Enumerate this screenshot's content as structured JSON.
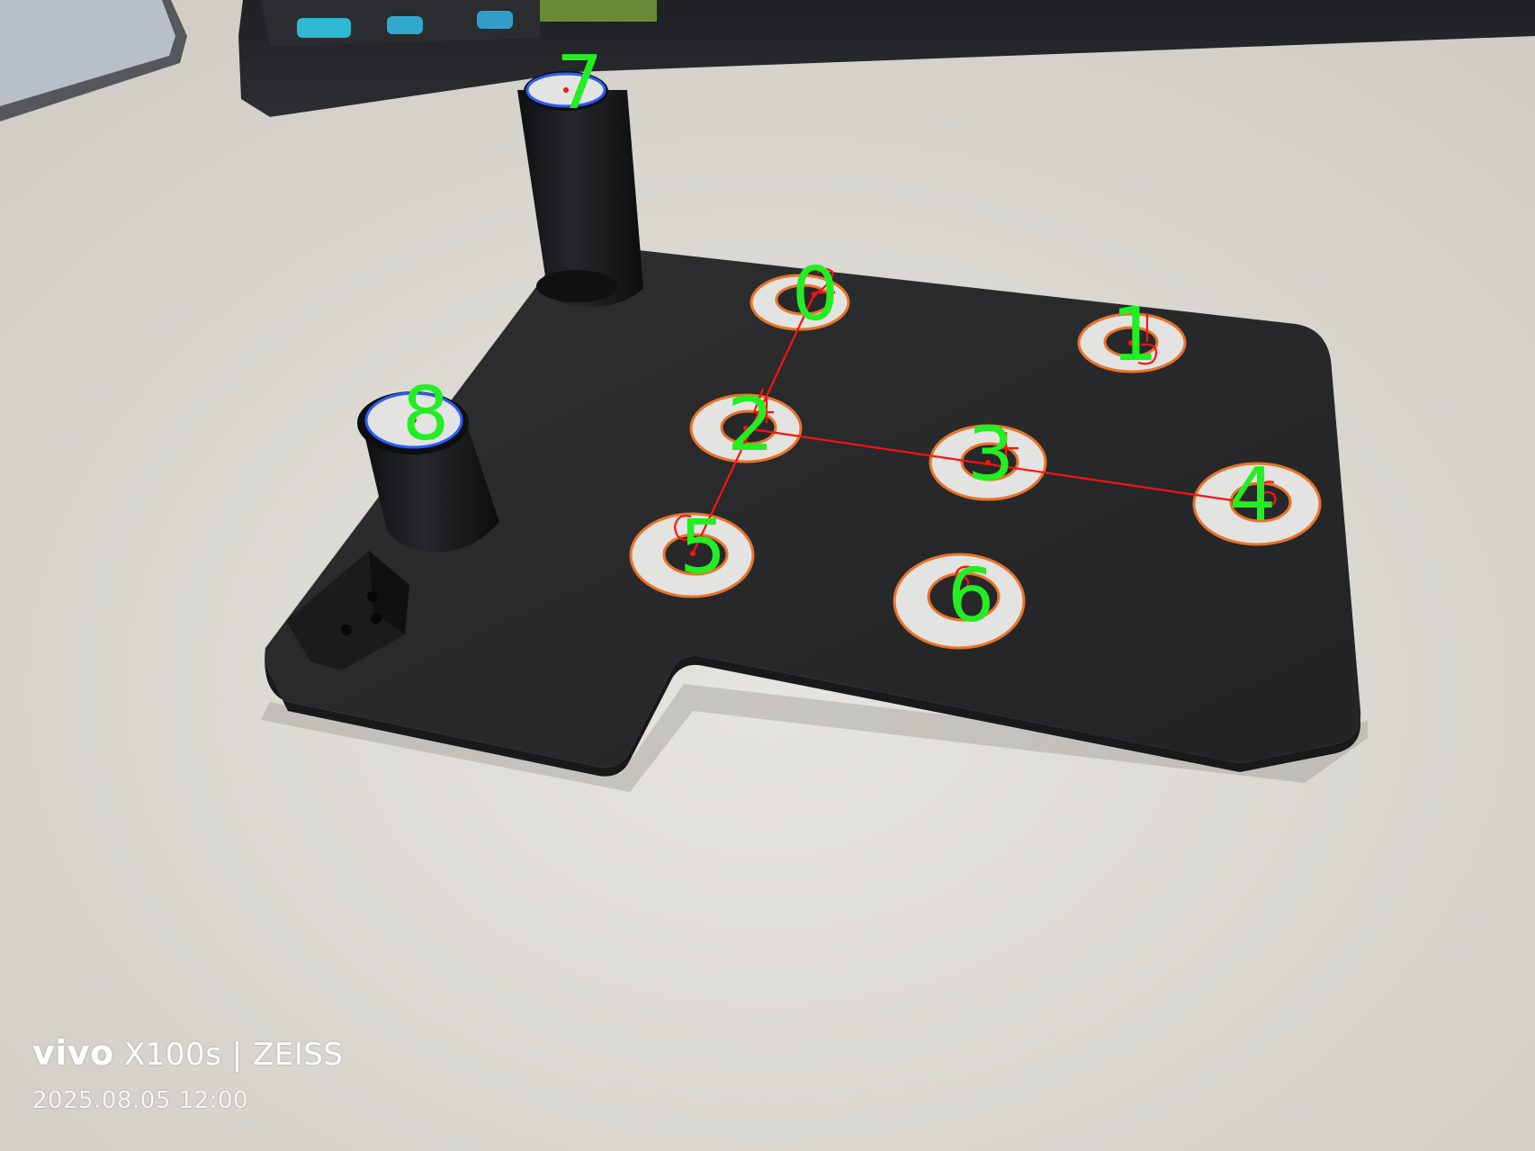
{
  "photo": {
    "description_free": true,
    "colors": {
      "table": "#dcdad4",
      "plate": "#28292b",
      "ring_outline": "#e8742a",
      "top_outline": "#2a5cff",
      "label": "#22ee22",
      "marker": "#ff1111",
      "ring_fill": "#e3e3e1"
    }
  },
  "labels": {
    "target_0": "0",
    "target_1": "1",
    "target_2": "2",
    "target_3": "3",
    "target_4": "4",
    "target_5": "5",
    "target_6": "6",
    "target_7": "7",
    "target_8": "8"
  },
  "watermark": {
    "brand": "vivo",
    "model": "X100s",
    "separator": "|",
    "lens": "ZEISS",
    "datetime": "2025.08.05 12:00"
  }
}
